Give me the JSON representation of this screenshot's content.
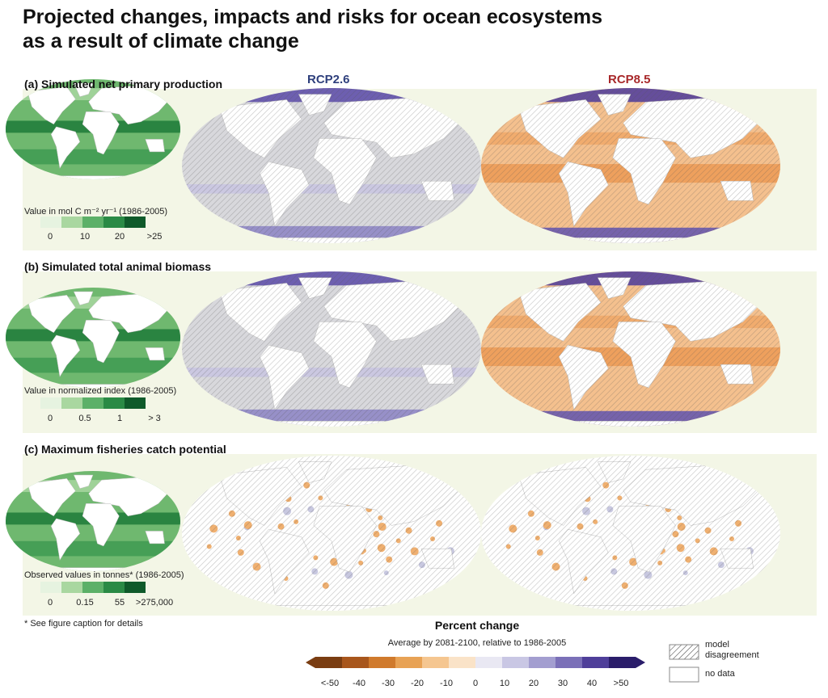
{
  "header": {
    "title_line1": "Projected changes, impacts and risks for ocean ecosystems",
    "title_line2": "as a result of climate change"
  },
  "scenarios": [
    "RCP2.6",
    "RCP8.5"
  ],
  "panels": [
    {
      "label": "(a) Simulated net primary production",
      "legend_text": "Value in  mol C m⁻² yr⁻¹ (1986-2005)",
      "legend_ticks": [
        "0",
        "10",
        "20",
        ">25"
      ]
    },
    {
      "label": "(b) Simulated total animal biomass",
      "legend_text": "Value in normalized index (1986-2005)",
      "legend_ticks": [
        "0",
        "0.5",
        "1",
        "> 3"
      ]
    },
    {
      "label": "(c) Maximum fisheries catch potential",
      "legend_text": "Observed values in tonnes* (1986-2005)",
      "legend_ticks": [
        "0",
        "0.15",
        "55",
        ">275,000"
      ]
    }
  ],
  "footnote": "* See figure caption for details",
  "colorbar": {
    "title": "Percent change",
    "subtitle": "Average by 2081-2100, relative to 1986-2005",
    "ticks": [
      "<-50",
      "-40",
      "-30",
      "-20",
      "-10",
      "0",
      "10",
      "20",
      "30",
      "40",
      ">50"
    ]
  },
  "key": [
    "model disagreement",
    "no data"
  ]
}
